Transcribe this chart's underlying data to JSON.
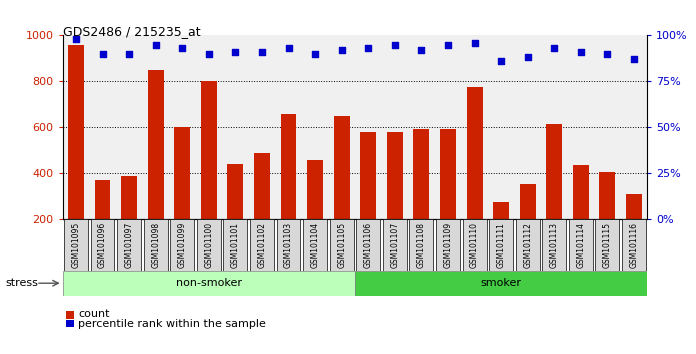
{
  "title": "GDS2486 / 215235_at",
  "categories": [
    "GSM101095",
    "GSM101096",
    "GSM101097",
    "GSM101098",
    "GSM101099",
    "GSM101100",
    "GSM101101",
    "GSM101102",
    "GSM101103",
    "GSM101104",
    "GSM101105",
    "GSM101106",
    "GSM101107",
    "GSM101108",
    "GSM101109",
    "GSM101110",
    "GSM101111",
    "GSM101112",
    "GSM101113",
    "GSM101114",
    "GSM101115",
    "GSM101116"
  ],
  "bar_values": [
    960,
    370,
    390,
    850,
    600,
    800,
    440,
    490,
    660,
    460,
    650,
    580,
    580,
    595,
    595,
    775,
    275,
    355,
    615,
    435,
    405,
    310
  ],
  "percentile_values": [
    98,
    90,
    90,
    95,
    93,
    90,
    91,
    91,
    93,
    90,
    92,
    93,
    95,
    92,
    95,
    96,
    86,
    88,
    93,
    91,
    90,
    87
  ],
  "non_smoker_count": 11,
  "smoker_count": 11,
  "bar_color": "#CC2200",
  "dot_color": "#0000CC",
  "non_smoker_color": "#BBFFBB",
  "smoker_color": "#44CC44",
  "bg_color": "#F0F0F0",
  "ylim_left": [
    200,
    1000
  ],
  "ylim_right": [
    0,
    100
  ],
  "yticks_left": [
    200,
    400,
    600,
    800,
    1000
  ],
  "yticks_right": [
    0,
    25,
    50,
    75,
    100
  ],
  "grid_values": [
    400,
    600,
    800
  ],
  "legend_count_label": "count",
  "legend_pct_label": "percentile rank within the sample",
  "stress_label": "stress"
}
